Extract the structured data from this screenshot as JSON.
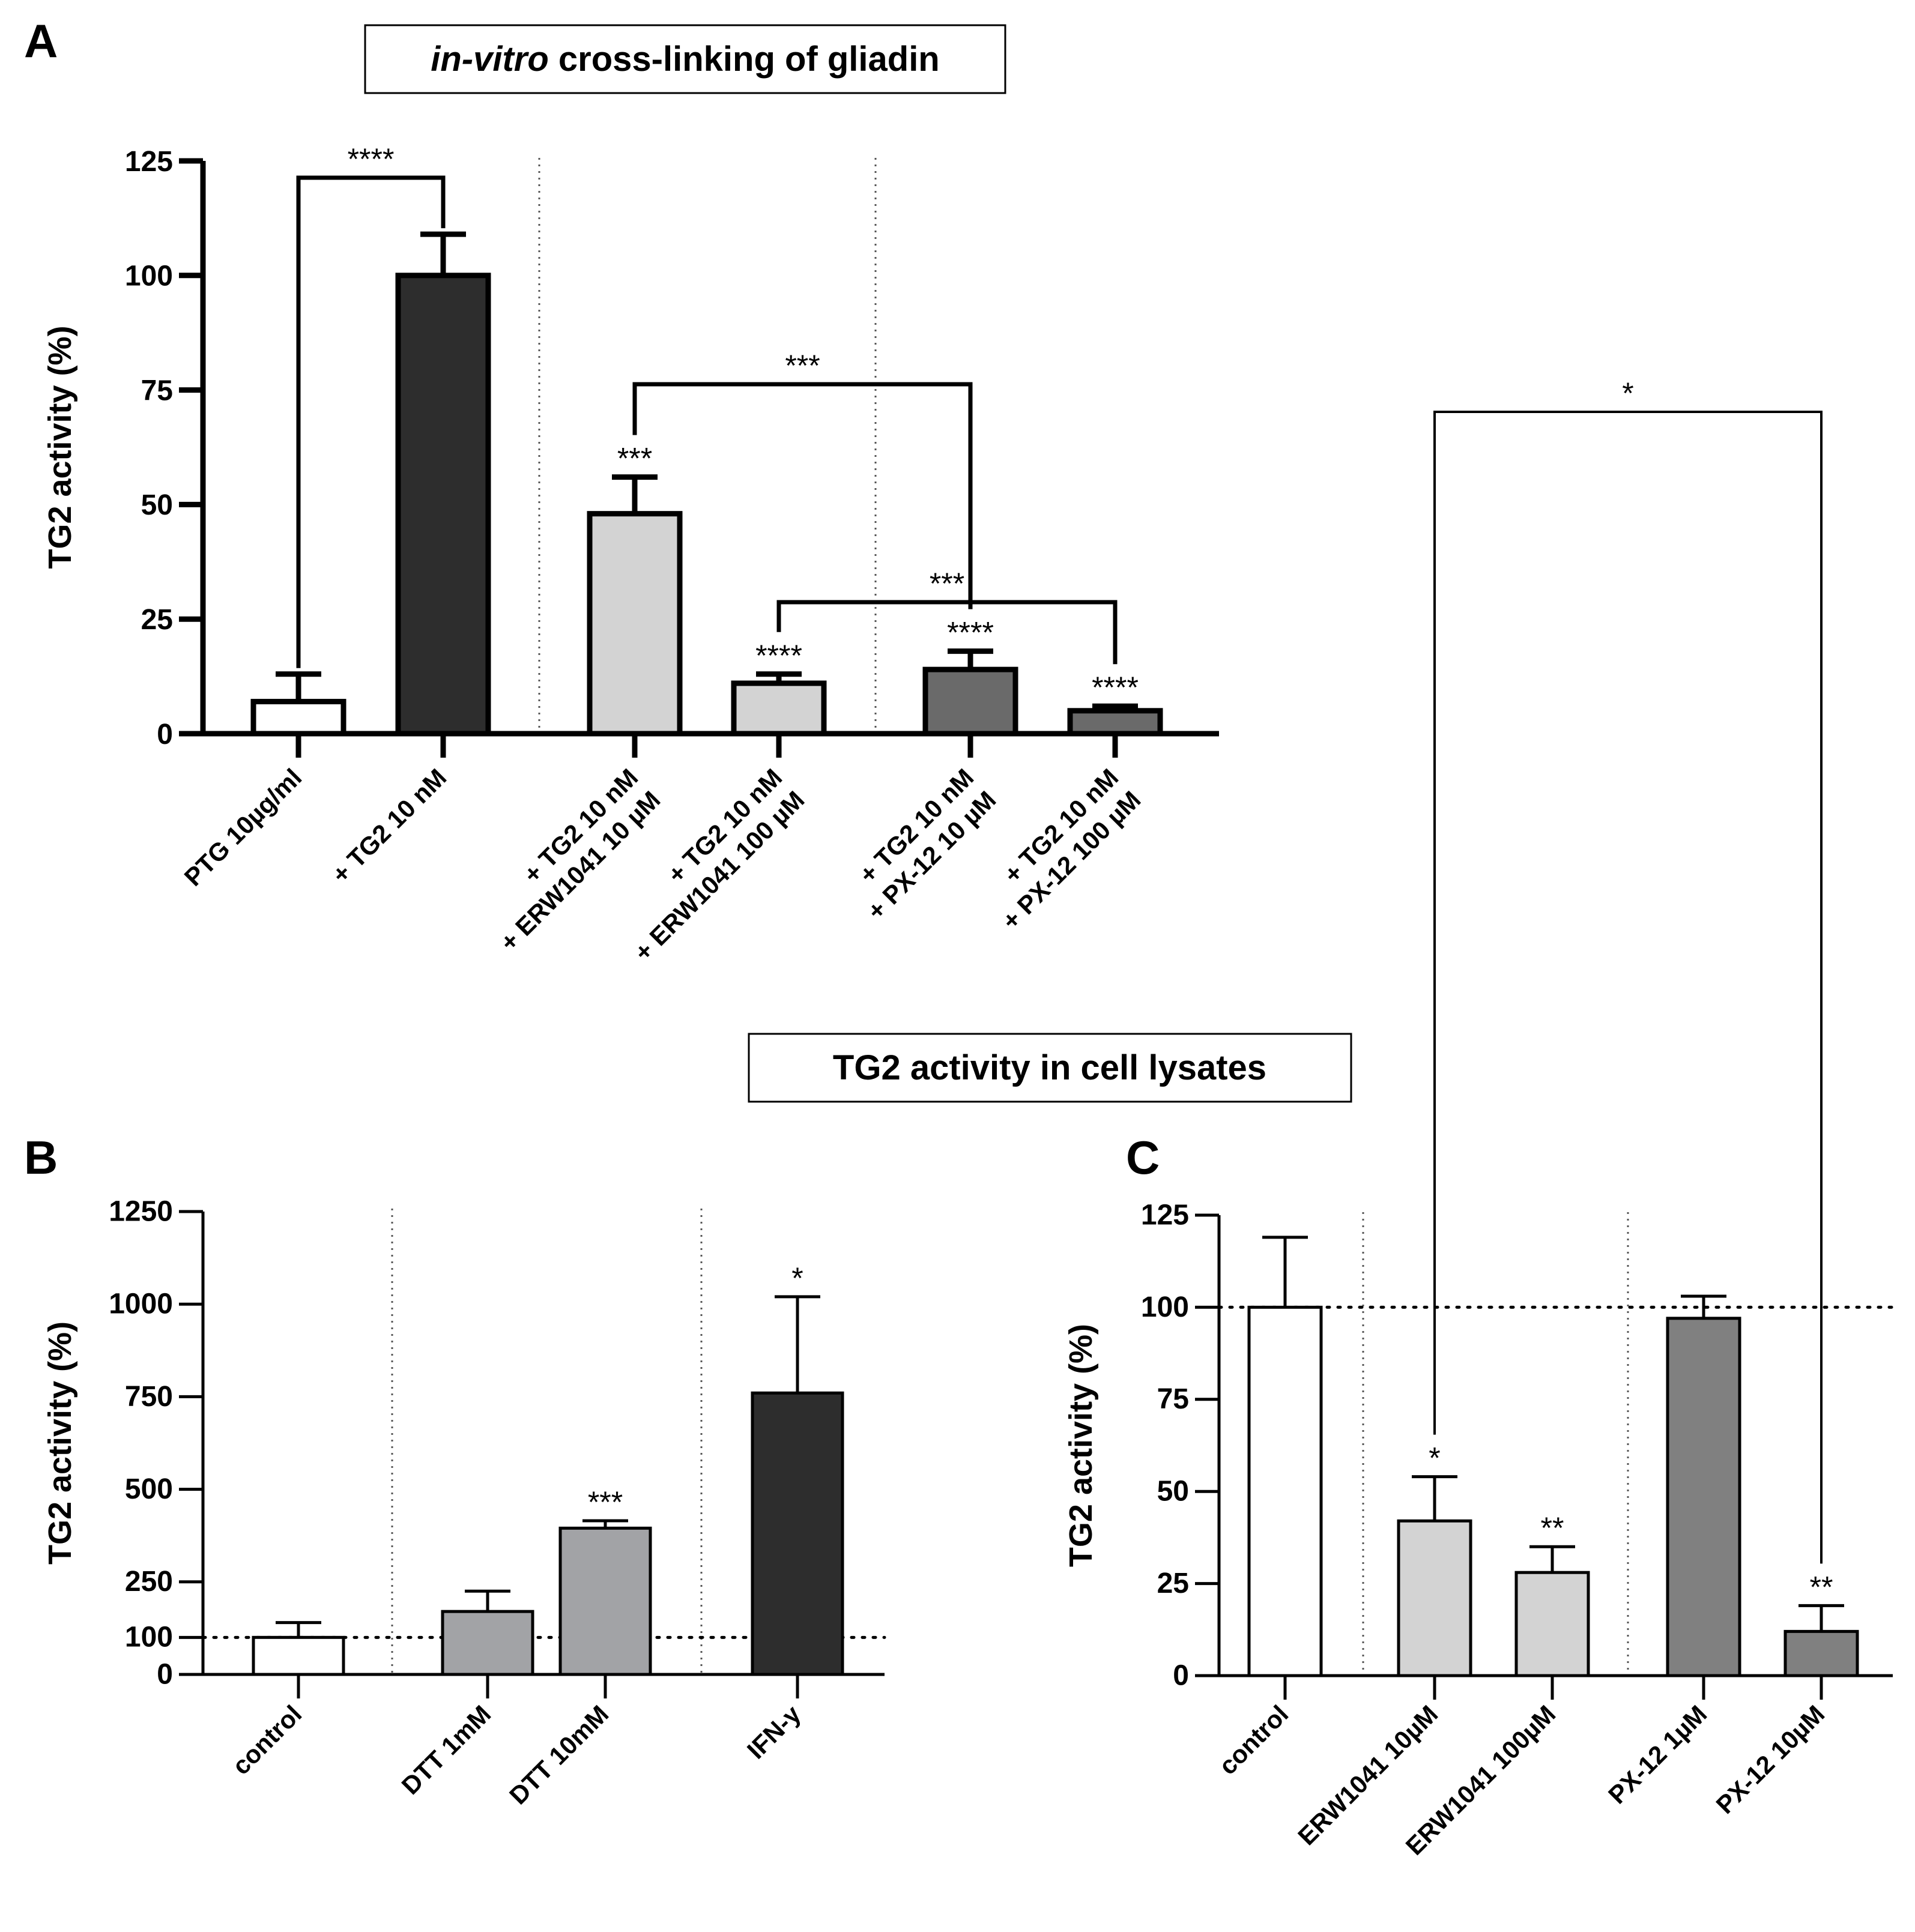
{
  "panels": {
    "A": "A",
    "B": "B",
    "C": "C"
  },
  "titles": {
    "top_italic": "in-vitro",
    "top_rest": " cross-linking of gliadin",
    "middle": "TG2 activity in cell lysates"
  },
  "colors": {
    "white": "#ffffff",
    "black_bar": "#2d2d2d",
    "light_grey": "#d3d3d3",
    "dark_grey": "#6a6a6a",
    "mid_grey": "#a2a3a6",
    "grey_c": "#808080"
  },
  "chart_data": [
    {
      "id": "A",
      "type": "bar",
      "ylabel": "TG2 activity (%)",
      "ylim": [
        0,
        125
      ],
      "yticks": [
        0,
        25,
        50,
        75,
        100,
        125
      ],
      "categories": [
        [
          "PTG 10µg/ml"
        ],
        [
          "+ TG2 10 nM"
        ],
        [
          "+ TG2 10 nM",
          "+ ERW1041 10 µM"
        ],
        [
          "+ TG2 10 nM",
          "+ ERW1041 100 µM"
        ],
        [
          "+ TG2 10 nM",
          "+ PX-12 10 µM"
        ],
        [
          "+ TG2 10 nM",
          "+ PX-12 100 µM"
        ]
      ],
      "values": [
        7,
        100,
        48,
        11,
        14,
        5
      ],
      "errors": [
        6,
        9,
        8,
        2,
        4,
        1
      ],
      "bar_colors": [
        "white",
        "black_bar",
        "light_grey",
        "light_grey",
        "dark_grey",
        "dark_grey"
      ],
      "bar_significance": [
        "",
        "",
        "***",
        "****",
        "****",
        "****"
      ],
      "brackets": [
        {
          "from": 0,
          "to": 1,
          "label": "****"
        },
        {
          "from": 2,
          "to": 4,
          "label": "***"
        },
        {
          "from": 3,
          "to": 5,
          "label": "***"
        }
      ]
    },
    {
      "id": "B",
      "type": "bar",
      "ylabel": "TG2 activity (%)",
      "ylim": [
        0,
        1250
      ],
      "yticks": [
        0,
        100,
        250,
        500,
        750,
        1000,
        1250
      ],
      "reference_line": 100,
      "categories": [
        [
          "control"
        ],
        [
          "DTT 1mM"
        ],
        [
          "DTT 10mM"
        ],
        [
          "IFN-y"
        ]
      ],
      "values": [
        100,
        170,
        395,
        760
      ],
      "errors": [
        40,
        55,
        20,
        260
      ],
      "bar_colors": [
        "white",
        "mid_grey",
        "mid_grey",
        "black_bar"
      ],
      "bar_significance": [
        "",
        "",
        "***",
        "*"
      ],
      "brackets": []
    },
    {
      "id": "C",
      "type": "bar",
      "ylabel": "TG2 activity (%)",
      "ylim": [
        0,
        125
      ],
      "yticks": [
        0,
        25,
        50,
        75,
        100,
        125
      ],
      "reference_line": 100,
      "categories": [
        [
          "control"
        ],
        [
          "ERW1041 10µM"
        ],
        [
          "ERW1041 100µM"
        ],
        [
          "PX-12 1µM"
        ],
        [
          "PX-12 10µM"
        ]
      ],
      "values": [
        100,
        42,
        28,
        97,
        12
      ],
      "errors": [
        19,
        12,
        7,
        6,
        7
      ],
      "bar_colors": [
        "white",
        "light_grey",
        "light_grey",
        "grey_c",
        "grey_c"
      ],
      "bar_significance": [
        "",
        "*",
        "**",
        "",
        "**"
      ],
      "brackets": [
        {
          "from": 1,
          "to": 4,
          "label": "*"
        }
      ]
    }
  ]
}
